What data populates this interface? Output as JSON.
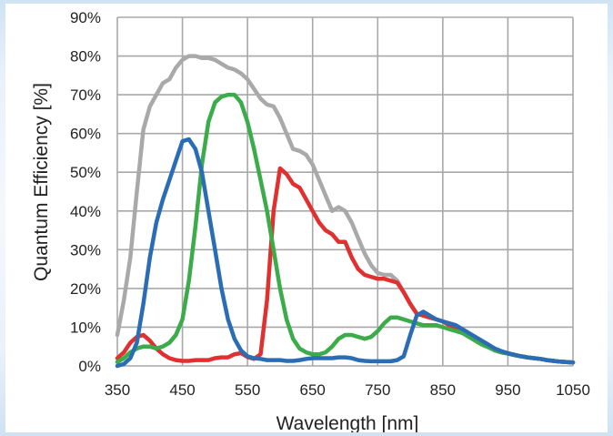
{
  "chart_data": {
    "type": "line",
    "title": "",
    "xlabel": "Wavelength [nm]",
    "ylabel": "Quantum Efficiency [%]",
    "xlim": [
      350,
      1050
    ],
    "ylim": [
      0,
      90
    ],
    "x_ticks": [
      350,
      450,
      550,
      650,
      750,
      850,
      950,
      1050
    ],
    "x_tick_labels": [
      "350",
      "450",
      "550",
      "650",
      "750",
      "850",
      "950",
      "1050"
    ],
    "y_ticks": [
      0,
      10,
      20,
      30,
      40,
      50,
      60,
      70,
      80,
      90
    ],
    "y_tick_labels": [
      "0%",
      "10%",
      "20%",
      "30%",
      "40%",
      "50%",
      "60%",
      "70%",
      "80%",
      "90%"
    ],
    "grid": true,
    "legend": "none",
    "series": [
      {
        "color": "#a9a9a9",
        "points": [
          [
            350,
            8
          ],
          [
            360,
            17
          ],
          [
            370,
            28
          ],
          [
            380,
            45
          ],
          [
            390,
            61
          ],
          [
            400,
            67
          ],
          [
            410,
            70
          ],
          [
            420,
            73
          ],
          [
            430,
            74
          ],
          [
            440,
            77
          ],
          [
            450,
            79
          ],
          [
            460,
            80
          ],
          [
            470,
            80
          ],
          [
            480,
            79.5
          ],
          [
            490,
            79.5
          ],
          [
            500,
            79
          ],
          [
            510,
            78
          ],
          [
            520,
            77
          ],
          [
            530,
            76.5
          ],
          [
            540,
            75.5
          ],
          [
            550,
            74
          ],
          [
            560,
            71.5
          ],
          [
            570,
            69
          ],
          [
            580,
            67.5
          ],
          [
            590,
            67
          ],
          [
            600,
            64
          ],
          [
            610,
            60
          ],
          [
            620,
            56
          ],
          [
            630,
            55.5
          ],
          [
            640,
            54.5
          ],
          [
            650,
            52
          ],
          [
            660,
            48
          ],
          [
            670,
            44
          ],
          [
            680,
            40
          ],
          [
            690,
            41
          ],
          [
            700,
            40
          ],
          [
            710,
            37
          ],
          [
            720,
            33
          ],
          [
            730,
            29
          ],
          [
            740,
            26
          ],
          [
            750,
            24
          ],
          [
            760,
            23.5
          ],
          [
            770,
            23.5
          ],
          [
            780,
            22
          ],
          [
            790,
            19
          ],
          [
            800,
            16
          ],
          [
            810,
            13.5
          ],
          [
            820,
            13
          ],
          [
            830,
            12.5
          ],
          [
            840,
            12
          ],
          [
            850,
            11.5
          ],
          [
            860,
            10.5
          ],
          [
            870,
            9.5
          ],
          [
            880,
            8.5
          ],
          [
            890,
            8
          ],
          [
            900,
            7
          ],
          [
            910,
            6
          ],
          [
            920,
            5
          ],
          [
            930,
            4
          ],
          [
            940,
            3.5
          ],
          [
            950,
            3.2
          ],
          [
            960,
            2.8
          ],
          [
            970,
            2.5
          ],
          [
            980,
            2.2
          ],
          [
            990,
            2
          ],
          [
            1000,
            1.8
          ],
          [
            1010,
            1.5
          ],
          [
            1020,
            1.3
          ],
          [
            1030,
            1.1
          ],
          [
            1040,
            1
          ],
          [
            1050,
            0.9
          ]
        ]
      },
      {
        "color": "#e03030",
        "points": [
          [
            350,
            2
          ],
          [
            360,
            3.5
          ],
          [
            370,
            6
          ],
          [
            380,
            7.5
          ],
          [
            390,
            8
          ],
          [
            400,
            6.5
          ],
          [
            410,
            4.5
          ],
          [
            420,
            3
          ],
          [
            430,
            2
          ],
          [
            440,
            1.5
          ],
          [
            450,
            1.3
          ],
          [
            460,
            1.3
          ],
          [
            470,
            1.5
          ],
          [
            480,
            1.5
          ],
          [
            490,
            1.5
          ],
          [
            500,
            2
          ],
          [
            510,
            2.2
          ],
          [
            520,
            2.2
          ],
          [
            530,
            3
          ],
          [
            540,
            3.3
          ],
          [
            550,
            2.3
          ],
          [
            560,
            1.8
          ],
          [
            570,
            3
          ],
          [
            580,
            17
          ],
          [
            590,
            40
          ],
          [
            600,
            51
          ],
          [
            610,
            49.5
          ],
          [
            620,
            47
          ],
          [
            630,
            46
          ],
          [
            640,
            43
          ],
          [
            650,
            40
          ],
          [
            660,
            37
          ],
          [
            670,
            35
          ],
          [
            680,
            34
          ],
          [
            690,
            32
          ],
          [
            700,
            32
          ],
          [
            710,
            28
          ],
          [
            720,
            25
          ],
          [
            730,
            23.5
          ],
          [
            740,
            23
          ],
          [
            750,
            22.5
          ],
          [
            760,
            22.5
          ],
          [
            770,
            22
          ],
          [
            780,
            21.5
          ],
          [
            790,
            19
          ],
          [
            800,
            16
          ],
          [
            810,
            13.5
          ],
          [
            820,
            13
          ],
          [
            830,
            12.5
          ],
          [
            840,
            12
          ],
          [
            850,
            11.5
          ],
          [
            860,
            10.5
          ],
          [
            870,
            9.5
          ],
          [
            880,
            8.5
          ],
          [
            890,
            8
          ],
          [
            900,
            7
          ],
          [
            910,
            6
          ],
          [
            920,
            5
          ],
          [
            930,
            4
          ],
          [
            940,
            3.5
          ],
          [
            950,
            3.2
          ],
          [
            960,
            2.8
          ],
          [
            970,
            2.5
          ],
          [
            980,
            2.2
          ],
          [
            990,
            2
          ],
          [
            1000,
            1.8
          ],
          [
            1010,
            1.5
          ],
          [
            1020,
            1.3
          ],
          [
            1030,
            1.1
          ],
          [
            1040,
            1
          ],
          [
            1050,
            0.9
          ]
        ]
      },
      {
        "color": "#3cab4a",
        "points": [
          [
            350,
            1
          ],
          [
            360,
            2
          ],
          [
            370,
            3.5
          ],
          [
            380,
            4.5
          ],
          [
            390,
            5
          ],
          [
            400,
            5
          ],
          [
            410,
            4.5
          ],
          [
            420,
            5
          ],
          [
            430,
            6
          ],
          [
            440,
            8
          ],
          [
            450,
            12
          ],
          [
            460,
            22
          ],
          [
            470,
            36
          ],
          [
            480,
            52
          ],
          [
            490,
            63
          ],
          [
            500,
            68
          ],
          [
            510,
            69.5
          ],
          [
            520,
            70
          ],
          [
            530,
            70
          ],
          [
            540,
            68
          ],
          [
            550,
            63
          ],
          [
            560,
            56
          ],
          [
            570,
            48
          ],
          [
            580,
            40
          ],
          [
            590,
            30
          ],
          [
            600,
            20
          ],
          [
            610,
            12
          ],
          [
            620,
            7
          ],
          [
            630,
            4.5
          ],
          [
            640,
            3.5
          ],
          [
            650,
            3
          ],
          [
            660,
            3
          ],
          [
            670,
            3.5
          ],
          [
            680,
            5
          ],
          [
            690,
            7
          ],
          [
            700,
            8
          ],
          [
            710,
            8
          ],
          [
            720,
            7.5
          ],
          [
            730,
            7
          ],
          [
            740,
            7.5
          ],
          [
            750,
            9
          ],
          [
            760,
            11
          ],
          [
            770,
            12.5
          ],
          [
            780,
            12.5
          ],
          [
            790,
            12
          ],
          [
            800,
            11.5
          ],
          [
            810,
            11
          ],
          [
            820,
            10.5
          ],
          [
            830,
            10.5
          ],
          [
            840,
            10.5
          ],
          [
            850,
            10
          ],
          [
            860,
            9.5
          ],
          [
            870,
            9
          ],
          [
            880,
            8.5
          ],
          [
            890,
            7.5
          ],
          [
            900,
            6.5
          ],
          [
            910,
            5.5
          ],
          [
            920,
            4.8
          ],
          [
            930,
            4
          ],
          [
            940,
            3.5
          ],
          [
            950,
            3.2
          ],
          [
            960,
            2.8
          ],
          [
            970,
            2.5
          ],
          [
            980,
            2.2
          ],
          [
            990,
            2
          ],
          [
            1000,
            1.8
          ],
          [
            1010,
            1.5
          ],
          [
            1020,
            1.3
          ],
          [
            1030,
            1.1
          ],
          [
            1040,
            1
          ],
          [
            1050,
            0.9
          ]
        ]
      },
      {
        "color": "#2b6db5",
        "points": [
          [
            350,
            0
          ],
          [
            360,
            0.5
          ],
          [
            370,
            2
          ],
          [
            380,
            6
          ],
          [
            390,
            16
          ],
          [
            400,
            28
          ],
          [
            410,
            37
          ],
          [
            420,
            43
          ],
          [
            430,
            48
          ],
          [
            440,
            53
          ],
          [
            450,
            58
          ],
          [
            460,
            58.5
          ],
          [
            470,
            56
          ],
          [
            480,
            50
          ],
          [
            490,
            40
          ],
          [
            500,
            30
          ],
          [
            510,
            20
          ],
          [
            520,
            12
          ],
          [
            530,
            7
          ],
          [
            540,
            4
          ],
          [
            550,
            2.5
          ],
          [
            560,
            2
          ],
          [
            570,
            1.8
          ],
          [
            580,
            1.5
          ],
          [
            590,
            1.5
          ],
          [
            600,
            1.5
          ],
          [
            610,
            1.3
          ],
          [
            620,
            1.3
          ],
          [
            630,
            1.5
          ],
          [
            640,
            1.8
          ],
          [
            650,
            2
          ],
          [
            660,
            2
          ],
          [
            670,
            2
          ],
          [
            680,
            2
          ],
          [
            690,
            2.2
          ],
          [
            700,
            2.2
          ],
          [
            710,
            2
          ],
          [
            720,
            1.5
          ],
          [
            730,
            1.3
          ],
          [
            740,
            1.2
          ],
          [
            750,
            1.2
          ],
          [
            760,
            1.2
          ],
          [
            770,
            1.2
          ],
          [
            780,
            1.5
          ],
          [
            790,
            2.5
          ],
          [
            800,
            8
          ],
          [
            810,
            13
          ],
          [
            820,
            14
          ],
          [
            830,
            13
          ],
          [
            840,
            12
          ],
          [
            850,
            11.5
          ],
          [
            860,
            11
          ],
          [
            870,
            10.5
          ],
          [
            880,
            9.5
          ],
          [
            890,
            8.5
          ],
          [
            900,
            7.5
          ],
          [
            910,
            6.5
          ],
          [
            920,
            5.5
          ],
          [
            930,
            4.5
          ],
          [
            940,
            3.8
          ],
          [
            950,
            3.3
          ],
          [
            960,
            2.9
          ],
          [
            970,
            2.5
          ],
          [
            980,
            2.2
          ],
          [
            990,
            2
          ],
          [
            1000,
            1.8
          ],
          [
            1010,
            1.5
          ],
          [
            1020,
            1.3
          ],
          [
            1030,
            1.1
          ],
          [
            1040,
            1
          ],
          [
            1050,
            0.9
          ]
        ]
      }
    ]
  }
}
